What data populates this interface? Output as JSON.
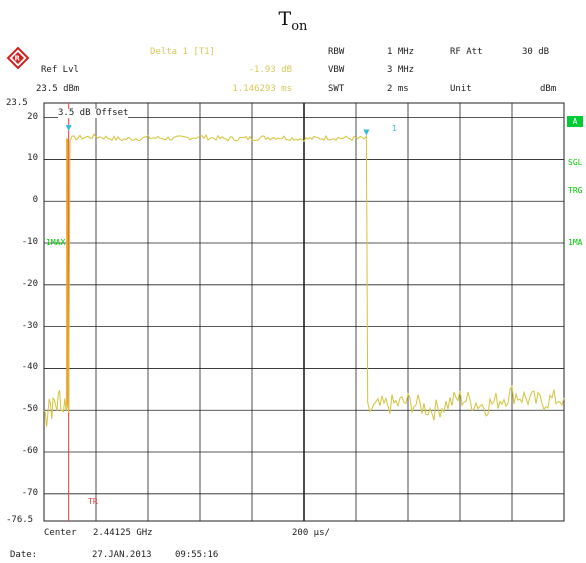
{
  "title": {
    "main": "T",
    "sub": "on"
  },
  "brand": {
    "logo": "rohde-schwarz-logo"
  },
  "header": {
    "ref_lvl_label": "Ref Lvl",
    "ref_lvl_value": "23.5 dBm",
    "marker_label": "Delta 1 [T1]",
    "marker_level": "-1.93 dB",
    "marker_time": "1.146293 ms",
    "rbw_label": "RBW",
    "rbw_value": "1 MHz",
    "vbw_label": "VBW",
    "vbw_value": "3 MHz",
    "swt_label": "SWT",
    "swt_value": "2 ms",
    "rf_att_label": "RF Att",
    "rf_att_value": "30 dB",
    "unit_label": "Unit",
    "unit_value": "dBm"
  },
  "plot": {
    "offset_label": "3.5 dB Offset",
    "trace_label_left": "1MAX",
    "trace_label_right": "1MA",
    "trigger_label": "TR",
    "marker_number": "1",
    "y_top_label": "23.5",
    "y_bottom_label": "-76.5",
    "y_ticks": [
      "20",
      "10",
      "0",
      "-10",
      "-20",
      "-30",
      "-40",
      "-50",
      "-60",
      "-70"
    ]
  },
  "side_annotations": {
    "box": "A",
    "sgl": "SGL",
    "trg": "TRG"
  },
  "footer": {
    "center_label": "Center",
    "center_value": "2.44125 GHz",
    "span_value": "200 µs/",
    "date_label": "Date:",
    "date_value": "27.JAN.2013",
    "time_value": "09:55:16"
  },
  "colors": {
    "trace": "#d4c33a",
    "trigger_line": "#e04040",
    "marker_line": "#f0a020",
    "grid": "#202020",
    "status_green": "#00cc33"
  },
  "chart_data": {
    "type": "line",
    "xlabel": "",
    "ylabel": "",
    "x_unit": "ms",
    "x_range": [
      0,
      2
    ],
    "ylim": [
      -76.5,
      23.5
    ],
    "grid": true,
    "series": [
      {
        "name": "1MAX",
        "x": [
          0,
          0.01,
          0.02,
          0.03,
          0.04,
          0.05,
          0.06,
          0.07,
          0.08,
          0.09,
          0.095,
          0.1,
          0.2,
          0.3,
          0.4,
          0.5,
          0.6,
          0.7,
          0.8,
          0.9,
          1.0,
          1.1,
          1.2,
          1.24,
          1.245,
          1.3,
          1.4,
          1.5,
          1.6,
          1.7,
          1.8,
          1.9,
          2.0
        ],
        "y": [
          -50,
          -52,
          -47,
          -50,
          -48,
          -49,
          -46,
          -50,
          -48,
          -49,
          -49,
          15,
          15.5,
          14.8,
          15.2,
          15.0,
          15.4,
          14.9,
          15.1,
          15.3,
          14.9,
          15.2,
          15.0,
          15.0,
          -50,
          -49,
          -48,
          -50,
          -47,
          -49,
          -46,
          -48,
          -47
        ]
      }
    ],
    "markers": [
      {
        "name": "Delta 1 [T1]",
        "delta_level_db": -1.93,
        "delta_time_ms": 1.146293
      }
    ]
  }
}
